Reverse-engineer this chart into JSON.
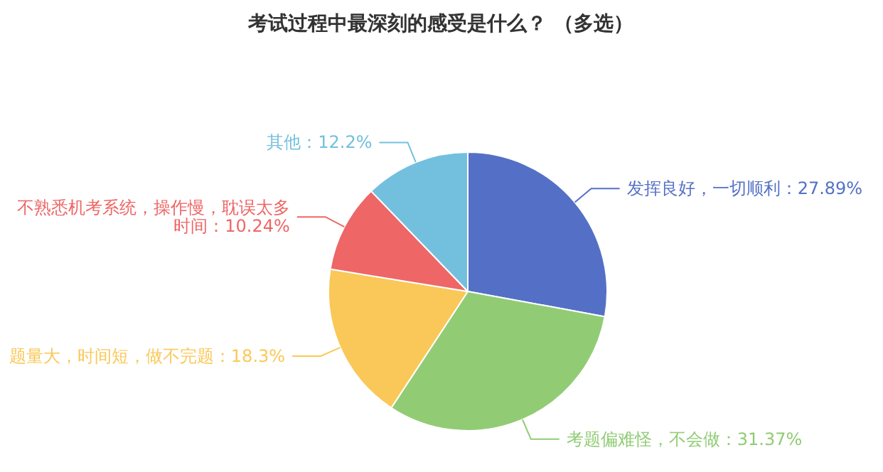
{
  "chart_data": {
    "type": "pie",
    "title": "考试过程中最深刻的感受是什么？ （多选）",
    "categories": [
      "发挥良好，一切顺利",
      "考题偏难怪，不会做",
      "题量大，时间短，做不完题",
      "不熟悉机考系统，操作慢，耽误太多时间",
      "其他"
    ],
    "values": [
      27.89,
      31.37,
      18.3,
      10.24,
      12.2
    ],
    "value_labels": [
      "27.89%",
      "31.37%",
      "18.3%",
      "10.24%",
      "12.2%"
    ],
    "colors": [
      "#5470c6",
      "#91cc75",
      "#fac858",
      "#ee6666",
      "#73c0de"
    ]
  }
}
